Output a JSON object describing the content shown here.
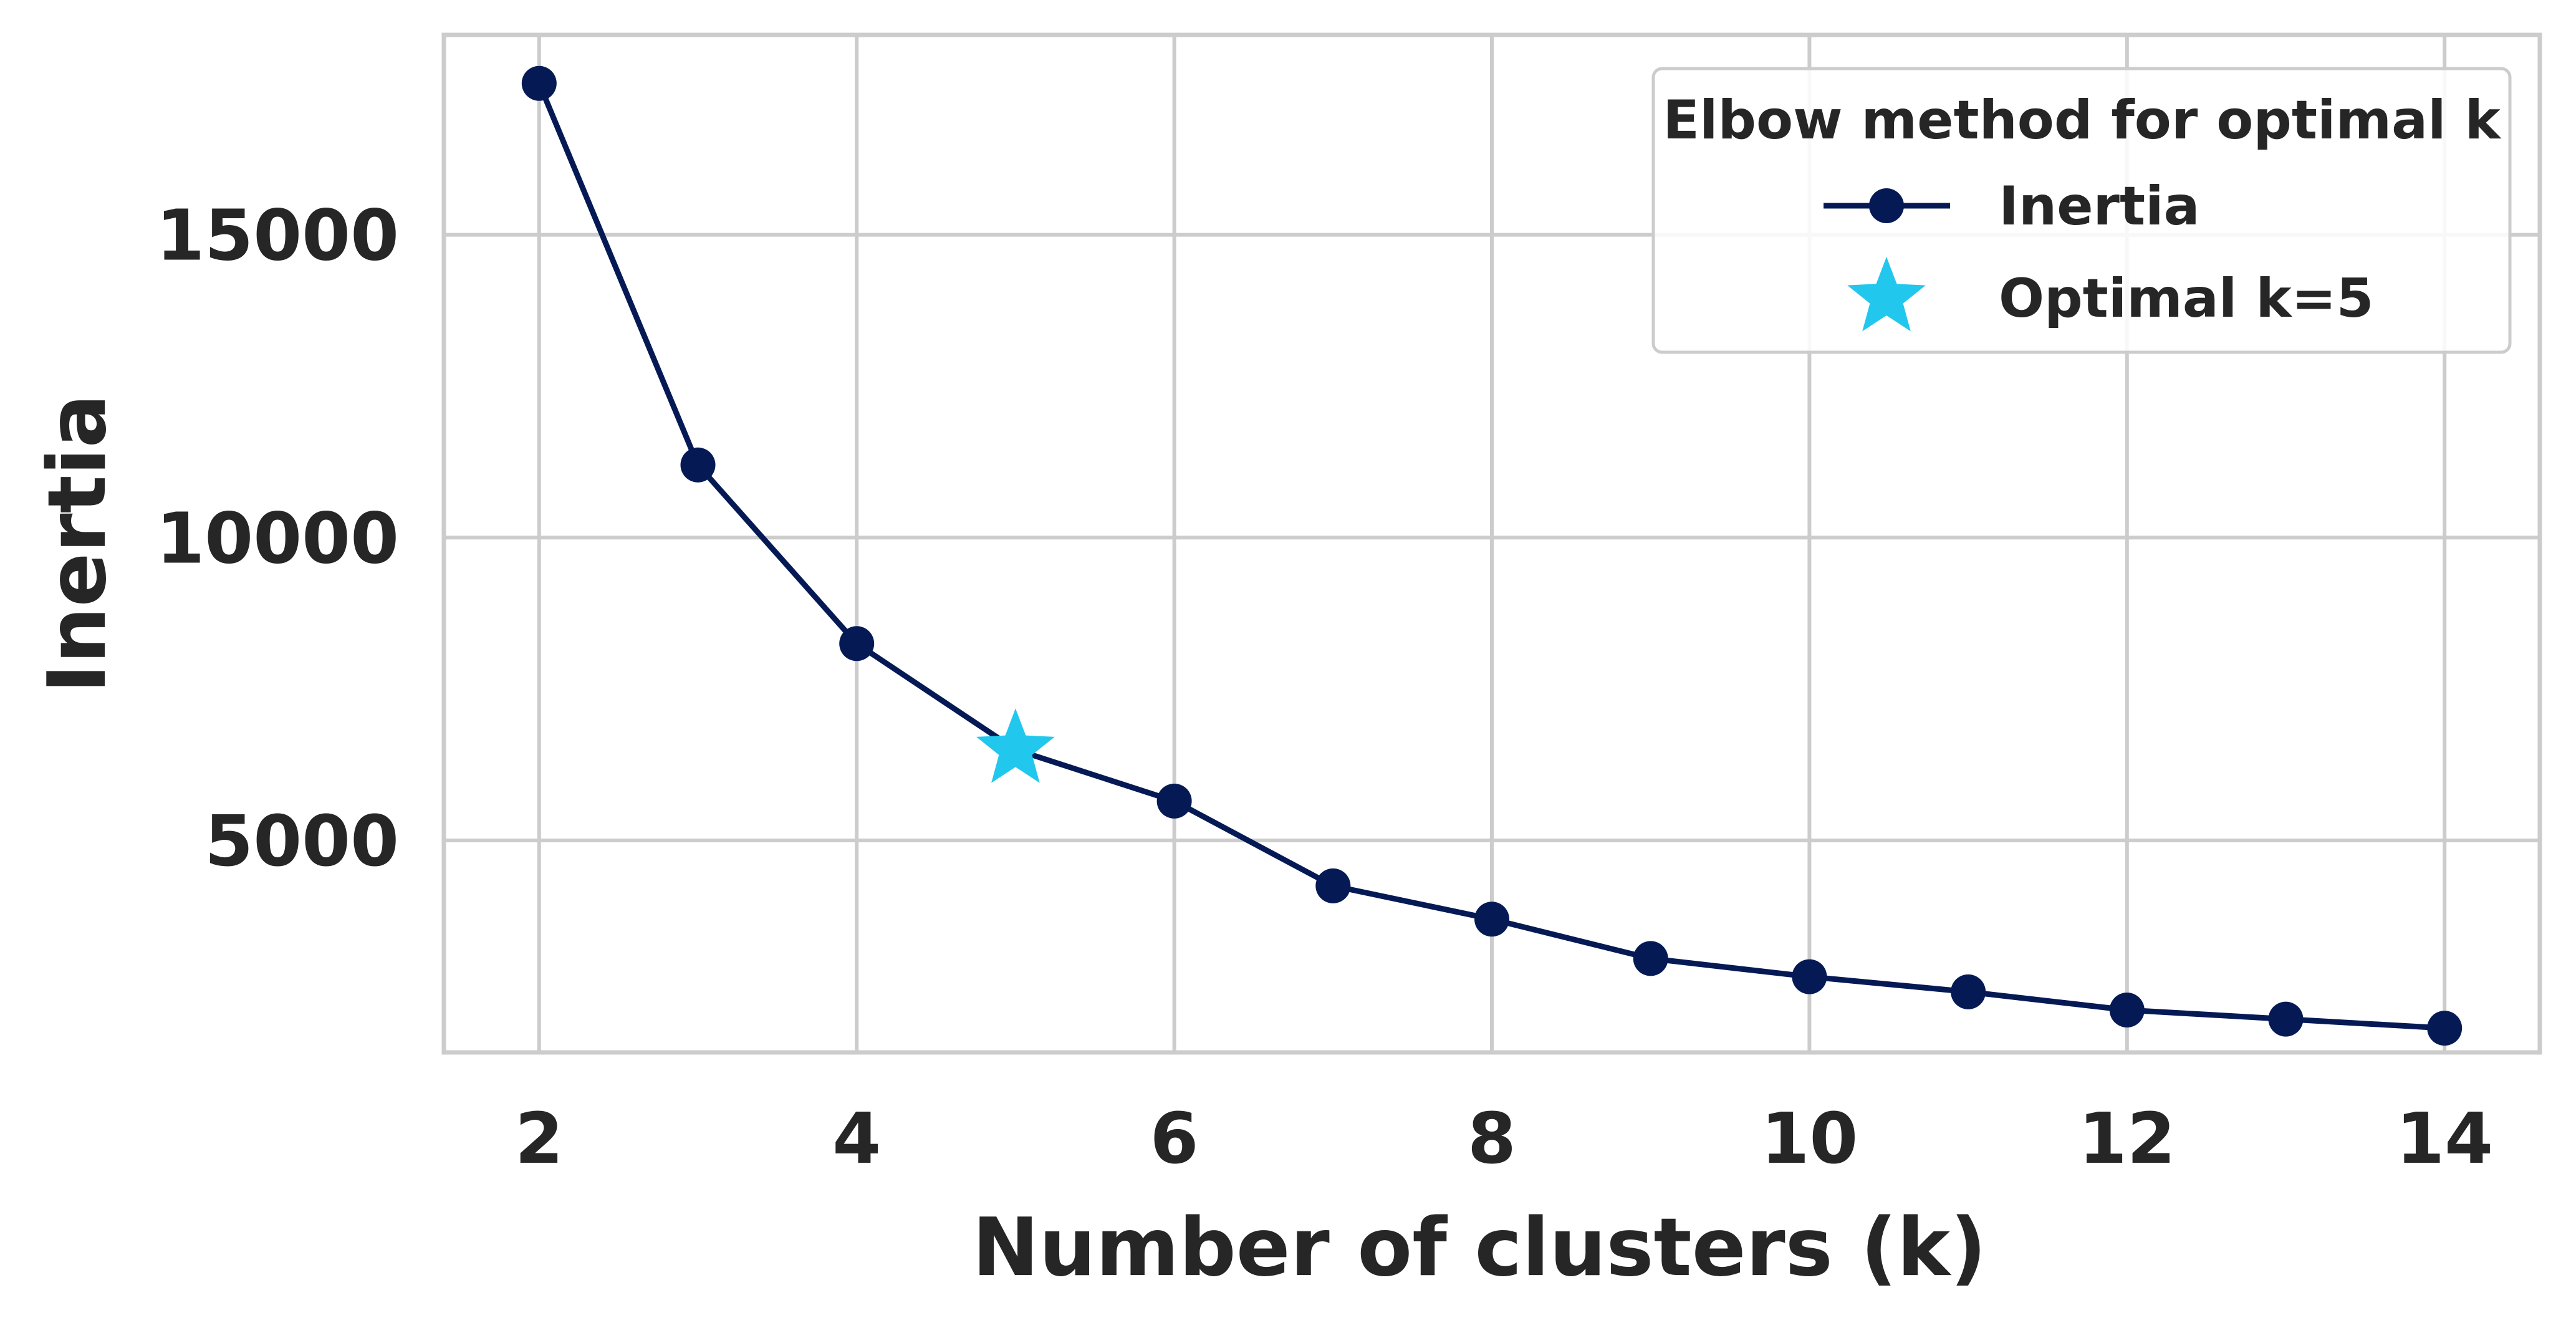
{
  "chart_data": {
    "type": "line",
    "title": "",
    "xlabel": "Number of clusters (k)",
    "ylabel": "Inertia",
    "xlim": [
      1.4,
      14.6
    ],
    "ylim": [
      1500,
      18300
    ],
    "x_ticks": [
      2,
      4,
      6,
      8,
      10,
      12,
      14
    ],
    "x_tick_labels": [
      "2",
      "4",
      "6",
      "8",
      "10",
      "12",
      "14"
    ],
    "y_ticks": [
      5000,
      10000,
      15000
    ],
    "y_tick_labels": [
      "5000",
      "10000",
      "15000"
    ],
    "grid": true,
    "legend": {
      "title": "Elbow method for optimal k",
      "position": "top-right",
      "entries": [
        "Inertia",
        "Optimal k=5"
      ]
    },
    "series": [
      {
        "name": "Inertia",
        "marker": "circle",
        "color": "#051a55",
        "x": [
          2,
          3,
          4,
          5,
          6,
          7,
          8,
          9,
          10,
          11,
          12,
          13,
          14
        ],
        "y": [
          17500,
          11200,
          8250,
          6500,
          5650,
          4250,
          3700,
          3050,
          2750,
          2500,
          2200,
          2050,
          1900
        ]
      },
      {
        "name": "Optimal k=5",
        "marker": "star",
        "color": "#22c7ed",
        "x": [
          5
        ],
        "y": [
          6500
        ]
      }
    ]
  }
}
